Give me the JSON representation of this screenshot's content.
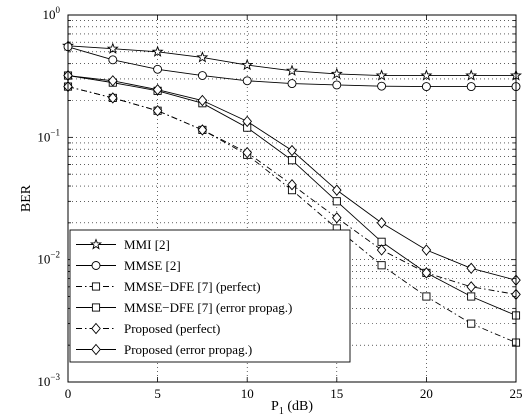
{
  "chart_data": {
    "type": "line",
    "title": "",
    "xlabel": "P",
    "xlabel_sub": "1",
    "xlabel_unit": " (dB)",
    "ylabel": "BER",
    "xlim": [
      0,
      25
    ],
    "ylim": [
      0.001,
      1
    ],
    "yscale": "log",
    "grid": true,
    "legend_position": "bottom-left",
    "x_ticks": [
      0,
      5,
      10,
      15,
      20,
      25
    ],
    "x_tick_labels": [
      "0",
      "5",
      "10",
      "15",
      "20",
      "25"
    ],
    "y_ticks": [
      0.001,
      0.01,
      0.1,
      1
    ],
    "y_tick_base": "10",
    "y_tick_exponents": [
      "−3",
      "−2",
      "−1",
      "0"
    ],
    "series": [
      {
        "name": "MMI [2]",
        "marker": "star",
        "dash": "solid",
        "x": [
          0,
          2.5,
          5,
          7.5,
          10,
          12.5,
          15,
          17.5,
          20,
          22.5,
          25
        ],
        "y": [
          0.56,
          0.53,
          0.5,
          0.45,
          0.39,
          0.35,
          0.33,
          0.32,
          0.32,
          0.32,
          0.32
        ]
      },
      {
        "name": "MMSE [2]",
        "marker": "circle",
        "dash": "solid",
        "x": [
          0,
          2.5,
          5,
          7.5,
          10,
          12.5,
          15,
          17.5,
          20,
          22.5,
          25
        ],
        "y": [
          0.55,
          0.43,
          0.36,
          0.32,
          0.29,
          0.275,
          0.268,
          0.262,
          0.26,
          0.26,
          0.26
        ]
      },
      {
        "name": "MMSE−DFE [7] (perfect)",
        "marker": "square",
        "dash": "dashdot",
        "x": [
          0,
          2.5,
          5,
          7.5,
          10,
          12.5,
          15,
          17.5,
          20,
          22.5,
          25
        ],
        "y": [
          0.26,
          0.21,
          0.165,
          0.115,
          0.072,
          0.037,
          0.018,
          0.009,
          0.005,
          0.003,
          0.0021
        ]
      },
      {
        "name": "MMSE−DFE [7] (error propag.)",
        "marker": "square",
        "dash": "solid",
        "x": [
          0,
          2.5,
          5,
          7.5,
          10,
          12.5,
          15,
          17.5,
          20,
          22.5,
          25
        ],
        "y": [
          0.32,
          0.28,
          0.24,
          0.19,
          0.12,
          0.065,
          0.03,
          0.014,
          0.0078,
          0.005,
          0.0035
        ]
      },
      {
        "name": "Proposed (perfect)",
        "marker": "diamond",
        "dash": "dashdot",
        "x": [
          0,
          2.5,
          5,
          7.5,
          10,
          12.5,
          15,
          17.5,
          20,
          22.5,
          25
        ],
        "y": [
          0.26,
          0.21,
          0.165,
          0.115,
          0.075,
          0.041,
          0.022,
          0.012,
          0.0078,
          0.006,
          0.0052
        ]
      },
      {
        "name": "Proposed (error propag.)",
        "marker": "diamond",
        "dash": "solid",
        "x": [
          0,
          2.5,
          5,
          7.5,
          10,
          12.5,
          15,
          17.5,
          20,
          22.5,
          25
        ],
        "y": [
          0.32,
          0.29,
          0.245,
          0.2,
          0.135,
          0.078,
          0.037,
          0.02,
          0.012,
          0.0085,
          0.0068
        ]
      }
    ]
  }
}
